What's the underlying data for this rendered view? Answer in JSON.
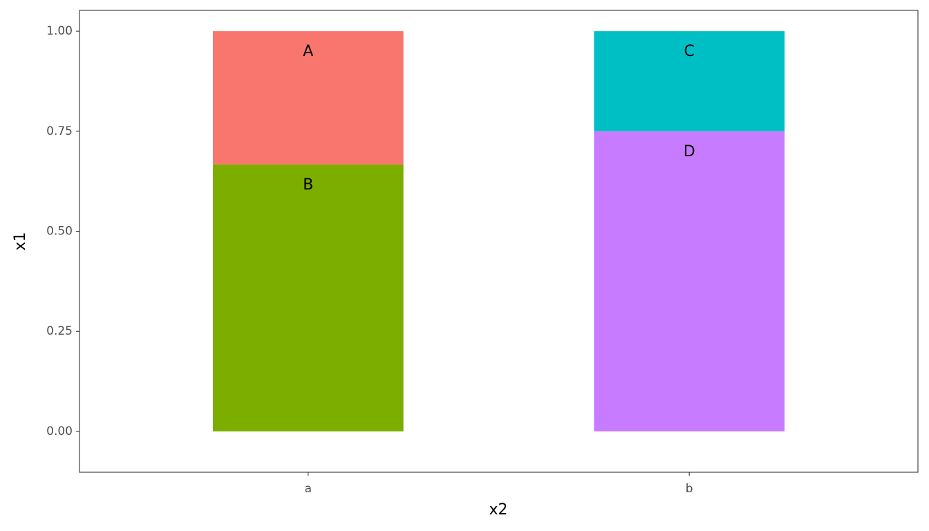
{
  "chart_data": {
    "type": "stacked_bar",
    "categories": [
      "a",
      "b"
    ],
    "series": [
      {
        "name": "A",
        "color": "#F8766D",
        "values": [
          0.333,
          null
        ]
      },
      {
        "name": "B",
        "color": "#7CAE00",
        "values": [
          0.667,
          null
        ]
      },
      {
        "name": "C",
        "color": "#00BFC4",
        "values": [
          null,
          0.25
        ]
      },
      {
        "name": "D",
        "color": "#C77CFF",
        "values": [
          null,
          0.75
        ]
      }
    ],
    "x_label": "x2",
    "y_label": "x1",
    "ylim": [
      -0.102,
      1.052
    ],
    "yticks": [
      {
        "value": 0,
        "label": "0.00"
      },
      {
        "value": 0.25,
        "label": "0.25"
      },
      {
        "value": 0.5,
        "label": "0.50"
      },
      {
        "value": 0.75,
        "label": "0.75"
      },
      {
        "value": 1,
        "label": "1.00"
      }
    ],
    "grid": false
  }
}
